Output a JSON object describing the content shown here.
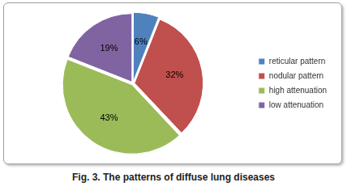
{
  "chart_data": {
    "type": "pie",
    "title": "Fig. 3. The patterns of diffuse lung diseases",
    "categories": [
      "reticular pattern",
      "nodular pattern",
      "high attenuation",
      "low attenuation"
    ],
    "values": [
      6,
      32,
      43,
      19
    ],
    "value_labels": [
      "6%",
      "32%",
      "43%",
      "19%"
    ],
    "colors": [
      "#4f81bd",
      "#c0504d",
      "#9bbb59",
      "#8064a2"
    ],
    "data_labels": true,
    "legend": "right"
  }
}
